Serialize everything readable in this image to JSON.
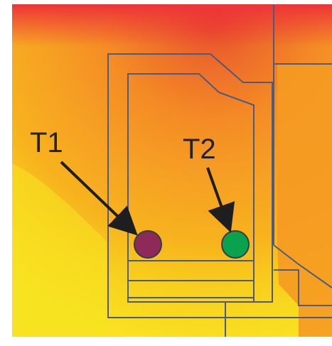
{
  "labels": {
    "t1": "T1",
    "t2": "T2"
  },
  "markers": {
    "t1_color": "#8E2A5A",
    "t2_color": "#0AA24F"
  },
  "colors": {
    "hot": "#EE3535",
    "warm": "#F59A22",
    "cool": "#F8E321",
    "outline": "#4E5B7F",
    "arrow": "#1E1E1E"
  }
}
